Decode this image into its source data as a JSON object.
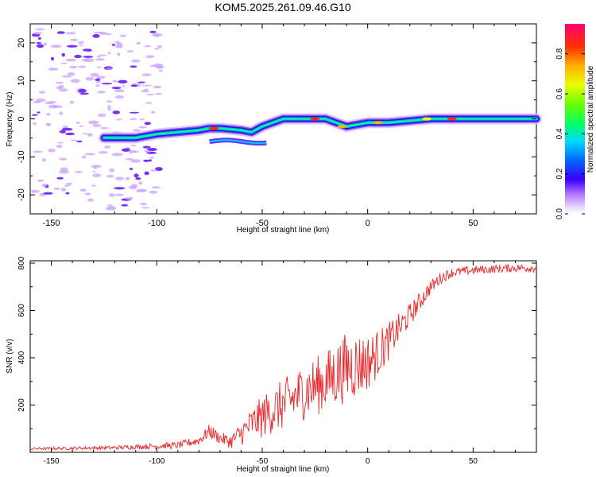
{
  "title": "KOM5.2025.261.09.46.G10",
  "chart_data": [
    {
      "type": "heatmap",
      "name": "spectrogram",
      "xlabel": "Height of straight line (km)",
      "ylabel": "Frequency (Hz)",
      "xlim": [
        -160,
        80
      ],
      "ylim": [
        -25,
        25
      ],
      "xticks": [
        -150,
        -100,
        -50,
        0,
        50
      ],
      "yticks": [
        -20,
        -10,
        0,
        10,
        20
      ],
      "colorbar": {
        "label": "Normalized spectral amplitude",
        "range": [
          0,
          0.95
        ],
        "ticks": [
          0.0,
          0.2,
          0.4,
          0.6,
          0.8
        ]
      },
      "ridge": {
        "description_points_x": [
          -120,
          -110,
          -100,
          -90,
          -80,
          -75,
          -70,
          -60,
          -55,
          -50,
          -45,
          -40,
          -30,
          -20,
          -10,
          0,
          10,
          20,
          30,
          40,
          50,
          60,
          70,
          80
        ],
        "description_points_y": [
          -5,
          -5,
          -4,
          -3.5,
          -3,
          -2.5,
          -2.5,
          -3,
          -3.5,
          -2,
          -1,
          0,
          0,
          0,
          -2,
          -1,
          -1,
          -0.5,
          0,
          0,
          0,
          0,
          0,
          0
        ]
      }
    },
    {
      "type": "line",
      "name": "snr",
      "xlabel": "Height of straight line (km)",
      "ylabel": "SNR (v/v)",
      "xlim": [
        -160,
        80
      ],
      "ylim": [
        0,
        810
      ],
      "xticks": [
        -150,
        -100,
        -50,
        0,
        50
      ],
      "yticks": [
        200,
        400,
        600,
        800
      ],
      "color": "#e8282c",
      "trend_x": [
        -160,
        -120,
        -90,
        -80,
        -75,
        -70,
        -65,
        -60,
        -55,
        -50,
        -45,
        -40,
        -35,
        -30,
        -25,
        -20,
        -15,
        -10,
        -5,
        0,
        5,
        10,
        20,
        25,
        30,
        35,
        40,
        50,
        60,
        70,
        80
      ],
      "trend_y": [
        15,
        20,
        30,
        50,
        90,
        60,
        45,
        80,
        120,
        150,
        180,
        200,
        230,
        260,
        280,
        300,
        330,
        360,
        370,
        380,
        420,
        470,
        580,
        640,
        700,
        740,
        760,
        770,
        775,
        780,
        780
      ],
      "noise_amp": [
        5,
        8,
        15,
        20,
        30,
        25,
        30,
        50,
        70,
        90,
        100,
        110,
        115,
        120,
        125,
        130,
        140,
        150,
        140,
        120,
        100,
        80,
        50,
        40,
        30,
        25,
        20,
        18,
        18,
        18,
        18
      ]
    }
  ]
}
